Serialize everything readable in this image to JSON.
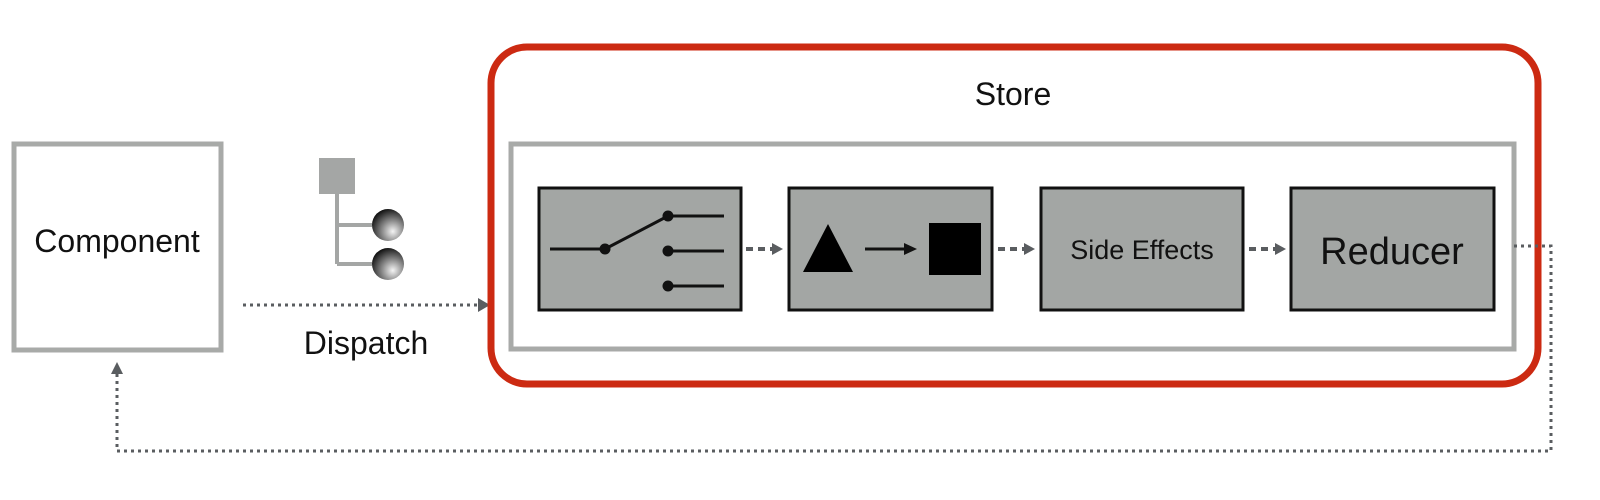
{
  "labels": {
    "component": "Component",
    "dispatch": "Dispatch",
    "store": "Store",
    "side_effects": "Side Effects",
    "reducer": "Reducer"
  },
  "stages": [
    {
      "name": "router",
      "icon": "switch-icon"
    },
    {
      "name": "transform",
      "icon": "triangle-to-square-icon"
    },
    {
      "name": "side-effects",
      "label_key": "side_effects"
    },
    {
      "name": "reducer",
      "label_key": "reducer"
    }
  ],
  "colors": {
    "store_border": "#cc2a12",
    "box_border": "#a8aaa8",
    "stage_fill": "#a3a6a4",
    "stage_border": "#111111",
    "connector": "#5a5d60",
    "text": "#111111"
  },
  "icons": {
    "action": "action-tree-icon",
    "switch": "switch-icon",
    "transform": "triangle-to-square-icon"
  }
}
